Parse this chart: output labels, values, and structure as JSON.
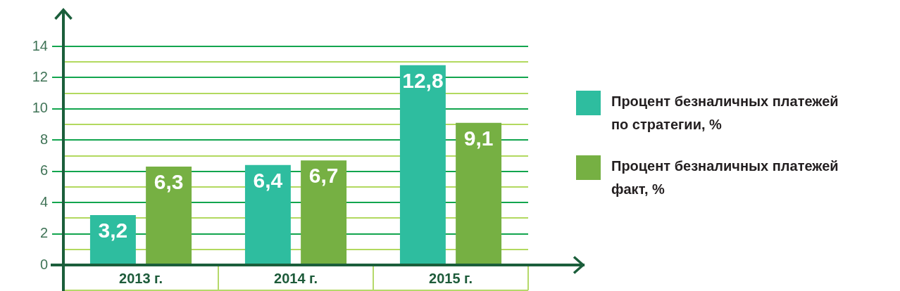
{
  "chart_data": {
    "type": "bar",
    "categories": [
      "2013 г.",
      "2014 г.",
      "2015 г."
    ],
    "series": [
      {
        "name": "Процент безналичных платежей по стратегии, %",
        "color": "#2ebd9f",
        "values": [
          3.2,
          6.4,
          12.8
        ],
        "value_labels": [
          "3,2",
          "6,4",
          "12,8"
        ]
      },
      {
        "name": "Процент безналичных платежей факт, %",
        "color": "#76b043",
        "values": [
          6.3,
          6.7,
          9.1
        ],
        "value_labels": [
          "6,3",
          "6,7",
          "9,1"
        ]
      }
    ],
    "ylim": [
      0,
      14
    ],
    "yticks": [
      0,
      {
        "value": 1,
        "label": null
      },
      2,
      {
        "value": 3,
        "label": null
      },
      4,
      {
        "value": 5,
        "label": null
      },
      6,
      {
        "value": 7,
        "label": null
      },
      8,
      {
        "value": 9,
        "label": null
      },
      10,
      {
        "value": 11,
        "label": null
      },
      12,
      {
        "value": 13,
        "label": null
      },
      14
    ],
    "grid": "y",
    "legend": "right"
  }
}
